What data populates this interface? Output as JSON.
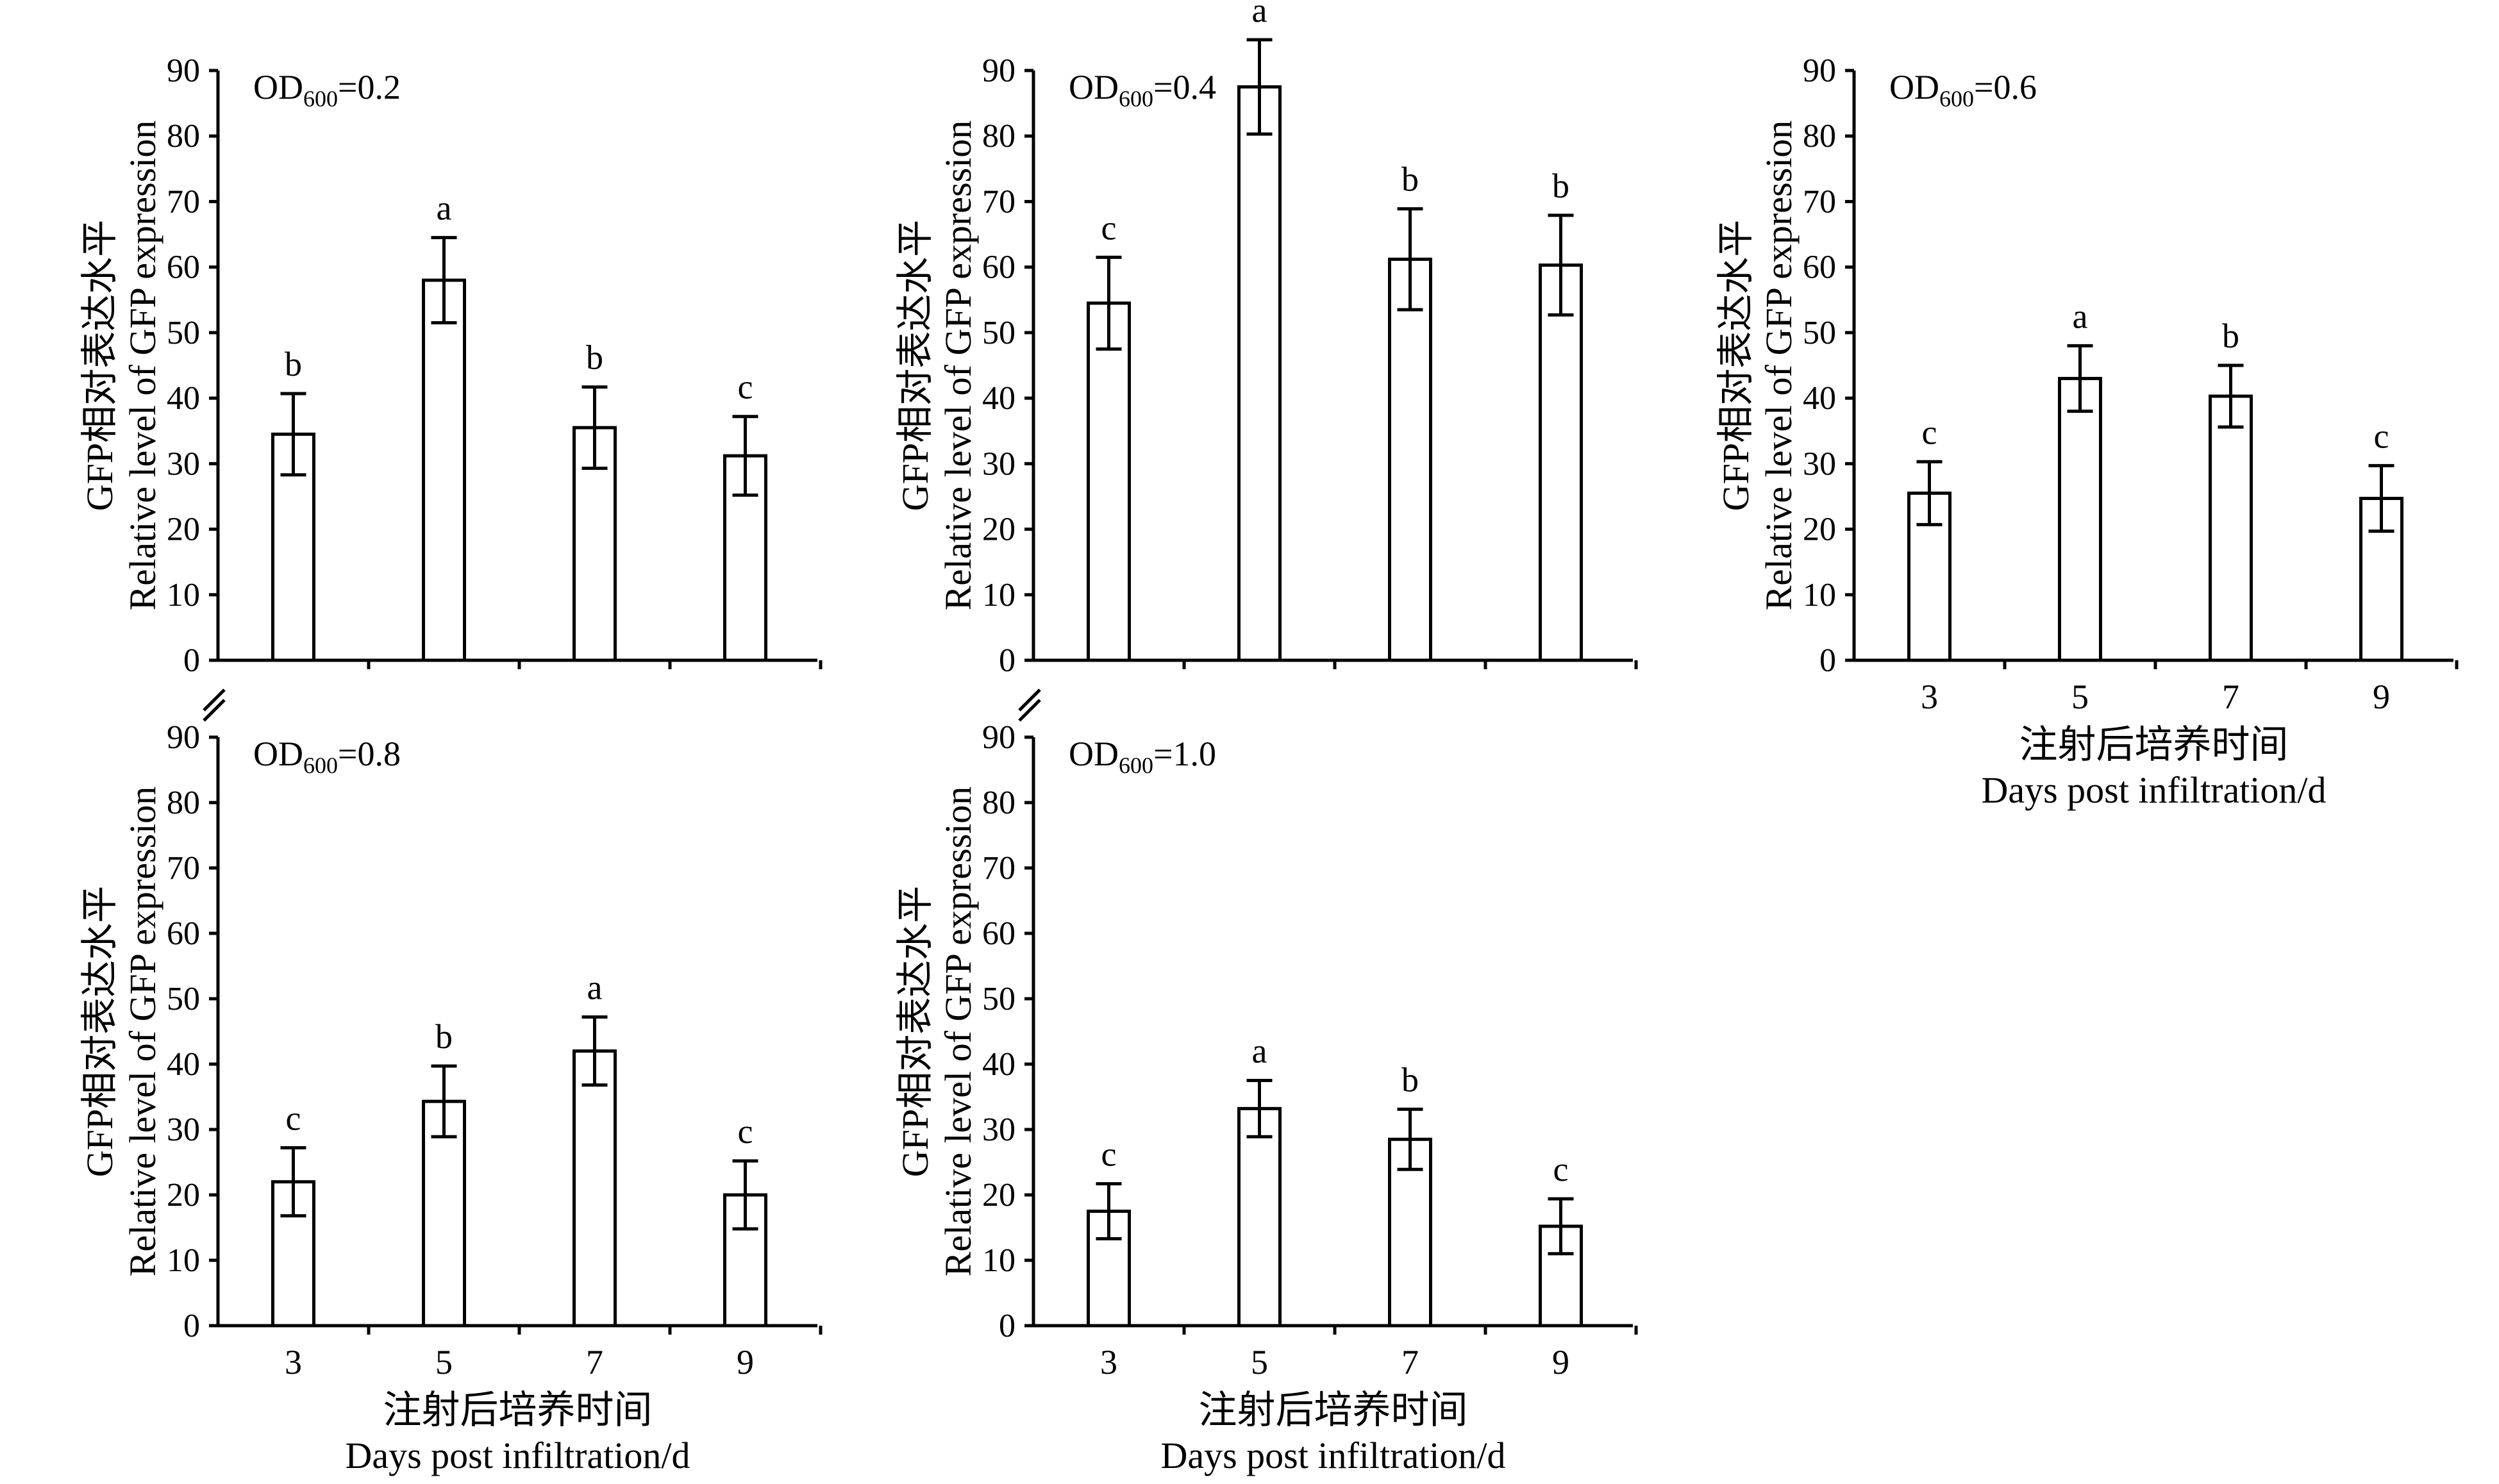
{
  "figure": {
    "ylabel_cn": "GFP相对表达水平",
    "ylabel_en": "Relative level of GFP expression",
    "xlabel_cn": "注射后培养时间",
    "xlabel_en": "Days post infiltration/d"
  },
  "chart_data": [
    {
      "type": "bar",
      "panel": "OD600=0.2",
      "annotation": {
        "prefix": "OD",
        "sub": "600",
        "suffix": "=0.2"
      },
      "categories": [
        "3",
        "5",
        "7",
        "9"
      ],
      "values": [
        34.5,
        58,
        35.5,
        31.2
      ],
      "errors": [
        6.2,
        6.5,
        6.2,
        6.0
      ],
      "letters": [
        "b",
        "a",
        "b",
        "c"
      ],
      "ylim": [
        0,
        90
      ],
      "yticks": [
        0,
        10,
        20,
        30,
        40,
        50,
        60,
        70,
        80,
        90
      ],
      "show_xticklabels": false,
      "show_xlabel": false
    },
    {
      "type": "bar",
      "panel": "OD600=0.4",
      "annotation": {
        "prefix": "OD",
        "sub": "600",
        "suffix": "=0.4"
      },
      "categories": [
        "3",
        "5",
        "7",
        "9"
      ],
      "values": [
        54.5,
        87.5,
        61.2,
        60.3
      ],
      "errors": [
        7.0,
        7.2,
        7.7,
        7.6
      ],
      "letters": [
        "c",
        "a",
        "b",
        "b"
      ],
      "ylim": [
        0,
        90
      ],
      "yticks": [
        0,
        10,
        20,
        30,
        40,
        50,
        60,
        70,
        80,
        90
      ],
      "show_xticklabels": false,
      "show_xlabel": false
    },
    {
      "type": "bar",
      "panel": "OD600=0.6",
      "annotation": {
        "prefix": "OD",
        "sub": "600",
        "suffix": "=0.6"
      },
      "categories": [
        "3",
        "5",
        "7",
        "9"
      ],
      "values": [
        25.5,
        43,
        40.3,
        24.7
      ],
      "errors": [
        4.8,
        5.0,
        4.7,
        5.0
      ],
      "letters": [
        "c",
        "a",
        "b",
        "c"
      ],
      "ylim": [
        0,
        90
      ],
      "yticks": [
        0,
        10,
        20,
        30,
        40,
        50,
        60,
        70,
        80,
        90
      ],
      "show_xticklabels": true,
      "show_xlabel": true
    },
    {
      "type": "bar",
      "panel": "OD600=0.8",
      "annotation": {
        "prefix": "OD",
        "sub": "600",
        "suffix": "=0.8"
      },
      "categories": [
        "3",
        "5",
        "7",
        "9"
      ],
      "values": [
        22,
        34.3,
        42,
        20
      ],
      "errors": [
        5.2,
        5.4,
        5.2,
        5.2
      ],
      "letters": [
        "c",
        "b",
        "a",
        "c"
      ],
      "ylim": [
        0,
        90
      ],
      "yticks": [
        0,
        10,
        20,
        30,
        40,
        50,
        60,
        70,
        80,
        90
      ],
      "show_xticklabels": true,
      "show_xlabel": true
    },
    {
      "type": "bar",
      "panel": "OD600=1.0",
      "annotation": {
        "prefix": "OD",
        "sub": "600",
        "suffix": "=1.0"
      },
      "categories": [
        "3",
        "5",
        "7",
        "9"
      ],
      "values": [
        17.5,
        33.2,
        28.5,
        15.2
      ],
      "errors": [
        4.2,
        4.3,
        4.6,
        4.2
      ],
      "letters": [
        "c",
        "a",
        "b",
        "c"
      ],
      "ylim": [
        0,
        90
      ],
      "yticks": [
        0,
        10,
        20,
        30,
        40,
        50,
        60,
        70,
        80,
        90
      ],
      "show_xticklabels": true,
      "show_xlabel": true
    }
  ]
}
